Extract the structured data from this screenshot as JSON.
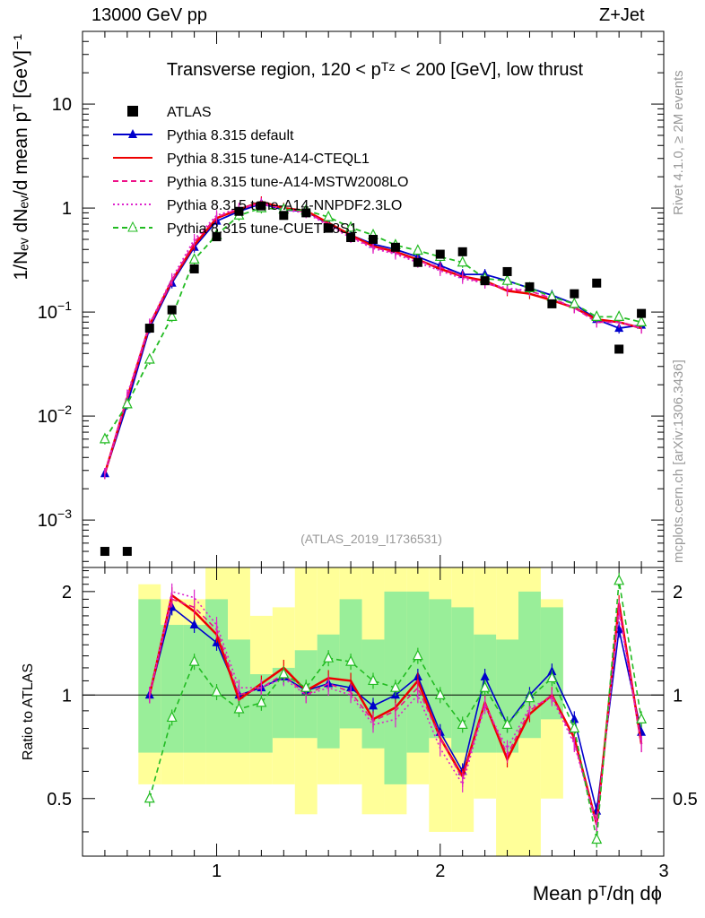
{
  "header": {
    "left": "13000 GeV pp",
    "right": "Z+Jet"
  },
  "side": {
    "rivet": "Rivet 4.1.0, ≥ 2M events",
    "mcplots": "mcplots.cern.ch [arXiv:1306.3436]"
  },
  "chart_data": {
    "type": "line",
    "title": "Transverse region, 120 < p_T^Z < 200 [GeV], low thrust",
    "analysis_label": "(ATLAS_2019_I1736531)",
    "xlabel": "Mean p_T/dη dϕ",
    "ylabel": "1/N_ev dN_ev/d mean p_T [GeV]^-1",
    "ratio_ylabel": "Ratio to ATLAS",
    "xlim": [
      0.4,
      3.0
    ],
    "ylim": [
      0.00035,
      50
    ],
    "yscale": "log",
    "ratio_ylim": [
      0.34,
      2.35
    ],
    "x_ticks": [
      1,
      2,
      3
    ],
    "y_tick_labels": [
      "10^-3",
      "10^-2",
      "10^-1",
      "1",
      "10"
    ],
    "ratio_tick_labels": [
      "0.5",
      "1",
      "2"
    ],
    "x": [
      0.5,
      0.6,
      0.7,
      0.8,
      0.9,
      1.0,
      1.1,
      1.2,
      1.3,
      1.4,
      1.5,
      1.6,
      1.7,
      1.8,
      1.9,
      2.0,
      2.1,
      2.2,
      2.3,
      2.4,
      2.5,
      2.6,
      2.7,
      2.8,
      2.9
    ],
    "data": {
      "name": "ATLAS",
      "values": [
        0.0005,
        0.0005,
        0.07,
        0.105,
        0.26,
        0.53,
        0.93,
        1.05,
        0.85,
        0.9,
        0.64,
        0.52,
        0.5,
        0.42,
        0.3,
        0.36,
        0.38,
        0.2,
        0.245,
        0.175,
        0.12,
        0.15,
        0.19,
        0.044,
        0.097
      ]
    },
    "series": [
      {
        "name": "Pythia 8.315 default",
        "color": "#0000cc",
        "dash": "solid",
        "marker": "triangle-filled",
        "values": [
          0.0028,
          0.013,
          0.07,
          0.19,
          0.42,
          0.75,
          0.93,
          1.1,
          0.96,
          0.93,
          0.7,
          0.55,
          0.45,
          0.4,
          0.34,
          0.28,
          0.23,
          0.23,
          0.2,
          0.17,
          0.145,
          0.12,
          0.085,
          0.07,
          0.075
        ]
      },
      {
        "name": "Pythia 8.315 tune-A14-CTEQL1",
        "color": "#ee0000",
        "dash": "solid",
        "marker": "none",
        "values": [
          0.0028,
          0.015,
          0.075,
          0.2,
          0.44,
          0.8,
          0.97,
          1.15,
          1.0,
          0.94,
          0.72,
          0.55,
          0.43,
          0.38,
          0.32,
          0.26,
          0.22,
          0.2,
          0.16,
          0.15,
          0.13,
          0.11,
          0.085,
          0.08,
          0.07
        ]
      },
      {
        "name": "Pythia 8.315 tune-A14-MSTW2008LO",
        "color": "#ee1188",
        "dash": "dashed",
        "marker": "none",
        "values": [
          0.0028,
          0.015,
          0.075,
          0.2,
          0.47,
          0.82,
          0.98,
          1.12,
          0.98,
          0.92,
          0.7,
          0.53,
          0.42,
          0.37,
          0.31,
          0.27,
          0.22,
          0.19,
          0.165,
          0.16,
          0.135,
          0.11,
          0.08,
          0.08,
          0.07
        ]
      },
      {
        "name": "Pythia 8.315 tune-A14-NNPDF2.3LO",
        "color": "#dd22cc",
        "dash": "dotted",
        "marker": "none",
        "values": [
          0.0028,
          0.016,
          0.077,
          0.21,
          0.5,
          0.85,
          1.0,
          1.1,
          0.96,
          0.9,
          0.68,
          0.52,
          0.41,
          0.36,
          0.3,
          0.25,
          0.21,
          0.19,
          0.17,
          0.16,
          0.135,
          0.11,
          0.08,
          0.08,
          0.07
        ]
      },
      {
        "name": "Pythia 8.315 tune-CUETP8S1",
        "color": "#22bb22",
        "dash": "dashed",
        "marker": "triangle-open",
        "values": [
          0.006,
          0.013,
          0.035,
          0.09,
          0.32,
          0.55,
          0.85,
          1.0,
          0.97,
          0.95,
          0.82,
          0.65,
          0.55,
          0.44,
          0.39,
          0.34,
          0.3,
          0.21,
          0.2,
          0.17,
          0.14,
          0.12,
          0.09,
          0.09,
          0.08
        ]
      }
    ],
    "ratio_series": [
      {
        "name": "Pythia 8.315 default",
        "values": [
          null,
          null,
          1.0,
          1.8,
          1.6,
          1.42,
          1.0,
          1.05,
          1.13,
          1.03,
          1.08,
          1.05,
          0.93,
          1.0,
          1.13,
          0.78,
          0.6,
          1.13,
          0.82,
          1.0,
          1.17,
          0.85,
          0.46,
          1.55,
          0.78
        ]
      },
      {
        "name": "Pythia 8.315 tune-A14-CTEQL1",
        "values": [
          null,
          null,
          1.0,
          1.95,
          1.75,
          1.5,
          0.97,
          1.08,
          1.2,
          1.03,
          1.12,
          1.1,
          0.85,
          0.92,
          1.1,
          0.75,
          0.58,
          0.95,
          0.65,
          0.88,
          1.0,
          0.75,
          0.42,
          1.85,
          0.72
        ]
      },
      {
        "name": "Pythia 8.315 tune-A14-MSTW2008LO",
        "values": [
          null,
          null,
          1.0,
          1.9,
          1.8,
          1.55,
          1.0,
          1.05,
          1.15,
          1.0,
          1.08,
          1.02,
          0.84,
          0.9,
          1.05,
          0.75,
          0.57,
          0.95,
          0.67,
          0.9,
          1.0,
          0.73,
          0.42,
          1.8,
          0.72
        ]
      },
      {
        "name": "Pythia 8.315 tune-A14-NNPDF2.3LO",
        "values": [
          null,
          null,
          1.0,
          2.0,
          1.92,
          1.6,
          1.05,
          1.05,
          1.12,
          1.0,
          1.05,
          1.0,
          0.82,
          0.85,
          1.0,
          0.7,
          0.55,
          0.93,
          0.7,
          0.92,
          0.98,
          0.72,
          0.42,
          1.75,
          0.72
        ]
      },
      {
        "name": "Pythia 8.315 tune-CUETP8S1",
        "values": [
          null,
          null,
          0.5,
          0.86,
          1.25,
          1.02,
          0.91,
          0.95,
          1.15,
          1.05,
          1.28,
          1.25,
          1.1,
          1.05,
          1.3,
          1.0,
          0.82,
          1.05,
          0.82,
          0.98,
          1.12,
          0.8,
          0.38,
          2.15,
          0.85
        ]
      }
    ],
    "ratio_band_green": [
      [
        0.68,
        1.9
      ],
      [
        0.68,
        1.6
      ],
      [
        0.68,
        1.6
      ],
      [
        0.68,
        1.9
      ],
      [
        0.68,
        1.45
      ],
      [
        0.68,
        1.15
      ],
      [
        0.75,
        1.2
      ],
      [
        0.75,
        1.35
      ],
      [
        0.7,
        1.5
      ],
      [
        0.8,
        1.9
      ],
      [
        0.7,
        1.45
      ],
      [
        0.55,
        2.0
      ],
      [
        0.68,
        2.0
      ],
      [
        0.75,
        1.9
      ],
      [
        0.68,
        1.8
      ],
      [
        0.68,
        1.5
      ],
      [
        0.68,
        1.45
      ],
      [
        0.75,
        2.0
      ],
      [
        0.85,
        1.8
      ]
    ],
    "ratio_band_yellow": [
      [
        0.55,
        2.1
      ],
      [
        0.55,
        1.9
      ],
      [
        0.55,
        1.9
      ],
      [
        0.55,
        2.35
      ],
      [
        0.55,
        2.35
      ],
      [
        0.55,
        1.7
      ],
      [
        0.55,
        1.8
      ],
      [
        0.45,
        2.35
      ],
      [
        0.55,
        2.35
      ],
      [
        0.55,
        2.35
      ],
      [
        0.45,
        2.35
      ],
      [
        0.45,
        2.35
      ],
      [
        0.55,
        2.35
      ],
      [
        0.4,
        2.35
      ],
      [
        0.4,
        2.35
      ],
      [
        0.5,
        2.35
      ],
      [
        0.34,
        2.35
      ],
      [
        0.34,
        2.35
      ],
      [
        0.5,
        1.9
      ]
    ],
    "band_x_start": 0.65
  }
}
